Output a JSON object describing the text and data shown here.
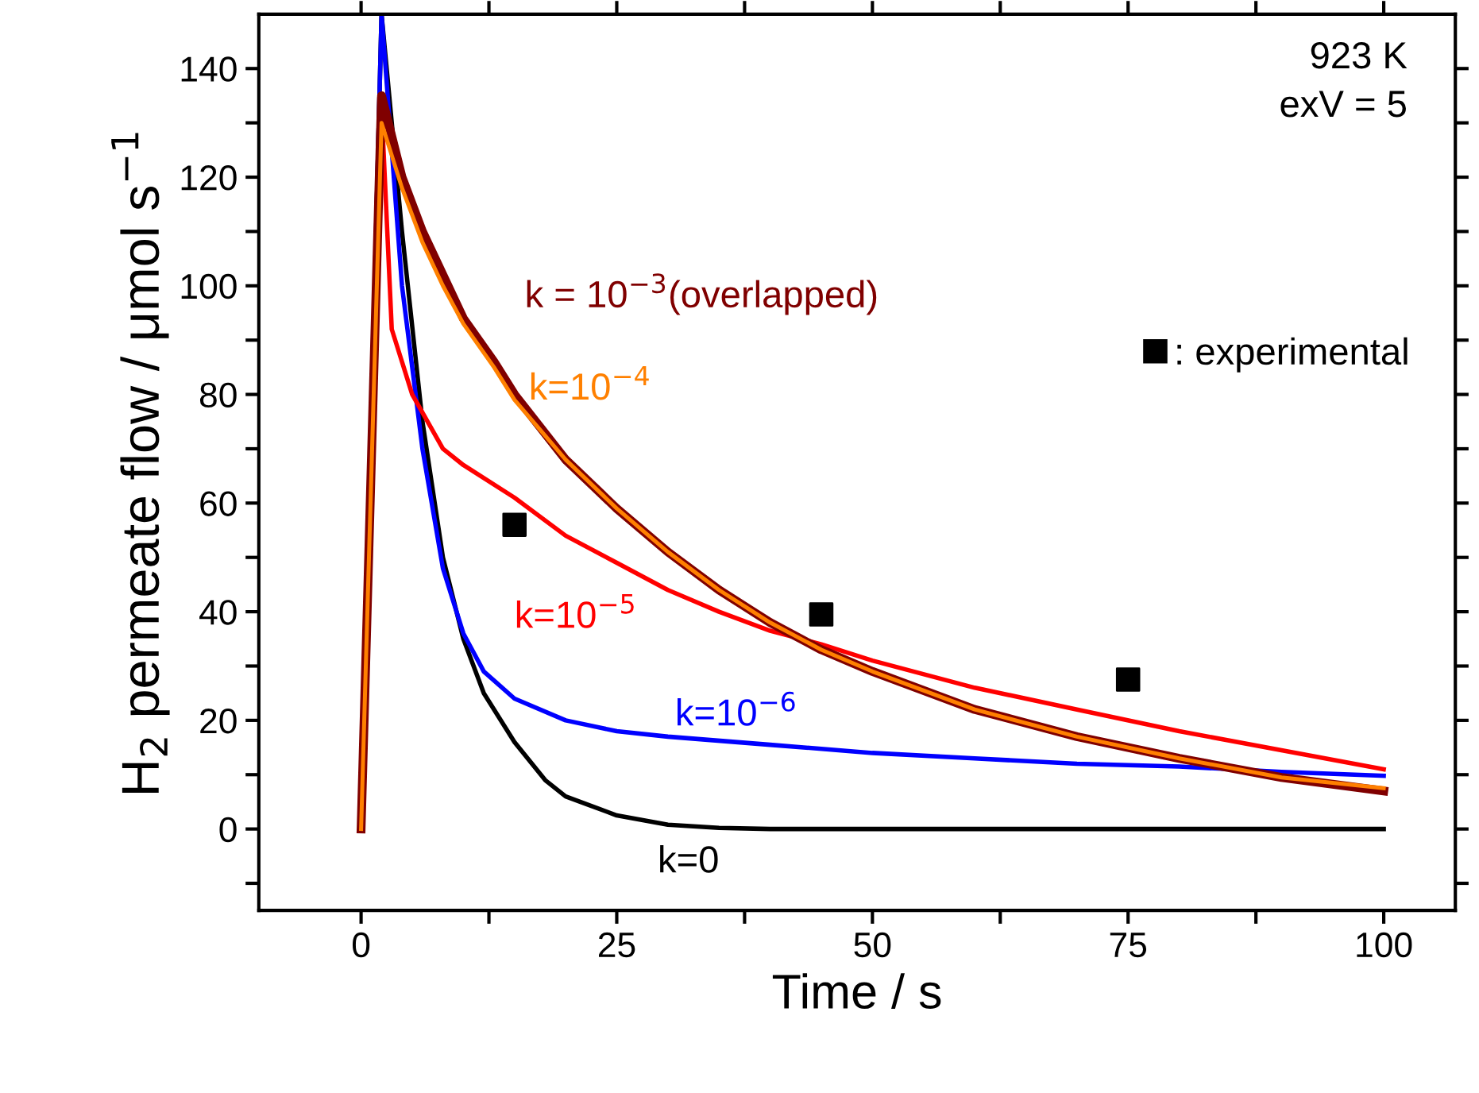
{
  "chart_data": {
    "type": "line",
    "xlabel": "Time / s",
    "ylabel": "H$_{2}$ permeate flow / μmol s$^{−1}$",
    "xlim": [
      -10,
      107
    ],
    "ylim": [
      -15,
      150
    ],
    "xticks": [
      0,
      {
        "value": 12.5,
        "label": null
      },
      25,
      {
        "value": 37.5,
        "label": null
      },
      50,
      {
        "value": 62.5,
        "label": null
      },
      75,
      {
        "value": 87.5,
        "label": null
      },
      100
    ],
    "yticks": [
      {
        "value": -10,
        "label": null
      },
      0,
      {
        "value": 10,
        "label": null
      },
      20,
      {
        "value": 30,
        "label": null
      },
      40,
      {
        "value": 50,
        "label": null
      },
      60,
      {
        "value": 70,
        "label": null
      },
      80,
      {
        "value": 90,
        "label": null
      },
      100,
      {
        "value": 110,
        "label": null
      },
      120,
      {
        "value": 130,
        "label": null
      },
      140
    ],
    "grid": false,
    "legend": "right",
    "annotations": [
      "923 K\nexV = 5"
    ],
    "series": [
      {
        "name": "k=0",
        "color": "#000000",
        "x": [
          0,
          2,
          4,
          6,
          8,
          10,
          12,
          15,
          18,
          20,
          25,
          30,
          35,
          40,
          100
        ],
        "values": [
          0,
          150,
          110,
          75,
          50,
          35,
          25,
          16,
          9,
          6,
          2.5,
          0.8,
          0.2,
          0,
          0
        ]
      },
      {
        "name": "k=10$^{−6}$",
        "color": "#0000ff",
        "x": [
          0,
          2,
          4,
          6,
          8,
          10,
          12,
          15,
          20,
          25,
          30,
          40,
          50,
          60,
          70,
          80,
          90,
          100
        ],
        "values": [
          0,
          150,
          100,
          70,
          48,
          36,
          29,
          24,
          20,
          18,
          17,
          15.5,
          14,
          13,
          12,
          11.5,
          10.5,
          9.8
        ]
      },
      {
        "name": "k=10$^{−5}$",
        "color": "#ff0000",
        "x": [
          0,
          2,
          3,
          5,
          8,
          10,
          15,
          20,
          25,
          30,
          35,
          40,
          45,
          50,
          60,
          70,
          80,
          90,
          100
        ],
        "values": [
          0,
          133,
          92,
          80,
          70,
          67,
          61,
          54,
          49,
          44,
          40,
          36.5,
          34,
          31,
          26,
          22,
          18,
          14.5,
          11
        ]
      },
      {
        "name": "k = 10$^{−3}$(overlapped)",
        "color": "#800000",
        "x": [
          0,
          2,
          4,
          6,
          8,
          10,
          13,
          15,
          20,
          25,
          30,
          35,
          40,
          45,
          50,
          60,
          70,
          80,
          90,
          100
        ],
        "values": [
          0,
          135,
          120,
          110,
          102,
          94,
          86,
          80,
          68,
          59,
          51,
          44,
          38,
          33,
          29,
          22,
          17,
          13,
          9.5,
          7
        ]
      },
      {
        "name": "k=10$^{−4}$",
        "color": "#ff8000",
        "x": [
          0,
          2,
          4,
          6,
          8,
          10,
          13,
          15,
          20,
          25,
          30,
          35,
          40,
          45,
          50,
          60,
          70,
          80,
          90,
          100
        ],
        "values": [
          0,
          130,
          118,
          108,
          100,
          93,
          85,
          79,
          68,
          59,
          51,
          44,
          38,
          33,
          29,
          22,
          17,
          13,
          9.5,
          7.5
        ]
      },
      {
        "name": ": experimental",
        "type": "scatter",
        "marker": "square",
        "color": "#000000",
        "x": [
          15,
          45,
          75
        ],
        "values": [
          56,
          39.5,
          27.5
        ]
      }
    ]
  }
}
